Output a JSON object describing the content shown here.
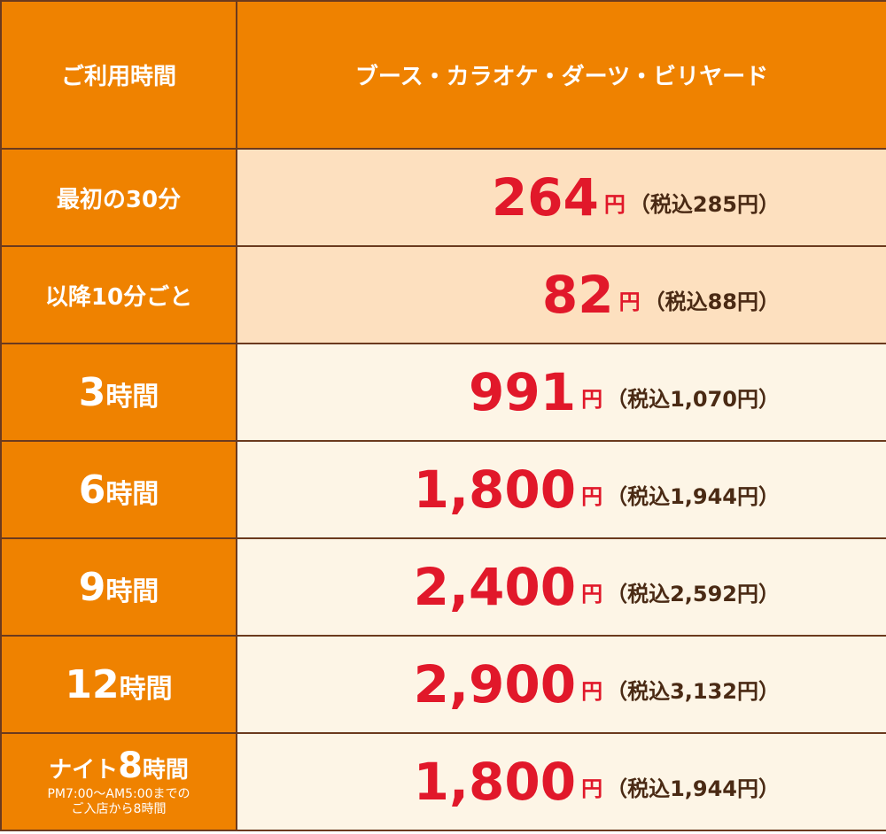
{
  "header": {
    "time_label": "ご利用時間",
    "service_label": "ブース・カラオケ・ダーツ・ビリヤード"
  },
  "rows": [
    {
      "label": "最初の30分",
      "amount": "264",
      "yen": "円",
      "tax": "（税込285円）"
    },
    {
      "label": "以降10分ごと",
      "amount": "82",
      "yen": "円",
      "tax": "（税込88円）"
    },
    {
      "num": "3",
      "unit": "時間",
      "amount": "991",
      "yen": "円",
      "tax": "（税込1,070円）"
    },
    {
      "num": "6",
      "unit": "時間",
      "amount": "1,800",
      "yen": "円",
      "tax": "（税込1,944円）"
    },
    {
      "num": "9",
      "unit": "時間",
      "amount": "2,400",
      "yen": "円",
      "tax": "（税込2,592円）"
    },
    {
      "num": "12",
      "unit": "時間",
      "amount": "2,900",
      "yen": "円",
      "tax": "（税込3,132円）"
    },
    {
      "prefix": "ナイト",
      "num": "8",
      "unit": "時間",
      "note_line1": "PM7:00～AM5:00までの",
      "note_line2": "ご入店から8時間",
      "amount": "1,800",
      "yen": "円",
      "tax": "（税込1,944円）"
    }
  ],
  "colors": {
    "orange": "#ef8200",
    "peach": "#fde0bf",
    "cream": "#fdf5e6",
    "price_red": "#e1182a",
    "border_brown": "#6b3a1e"
  }
}
